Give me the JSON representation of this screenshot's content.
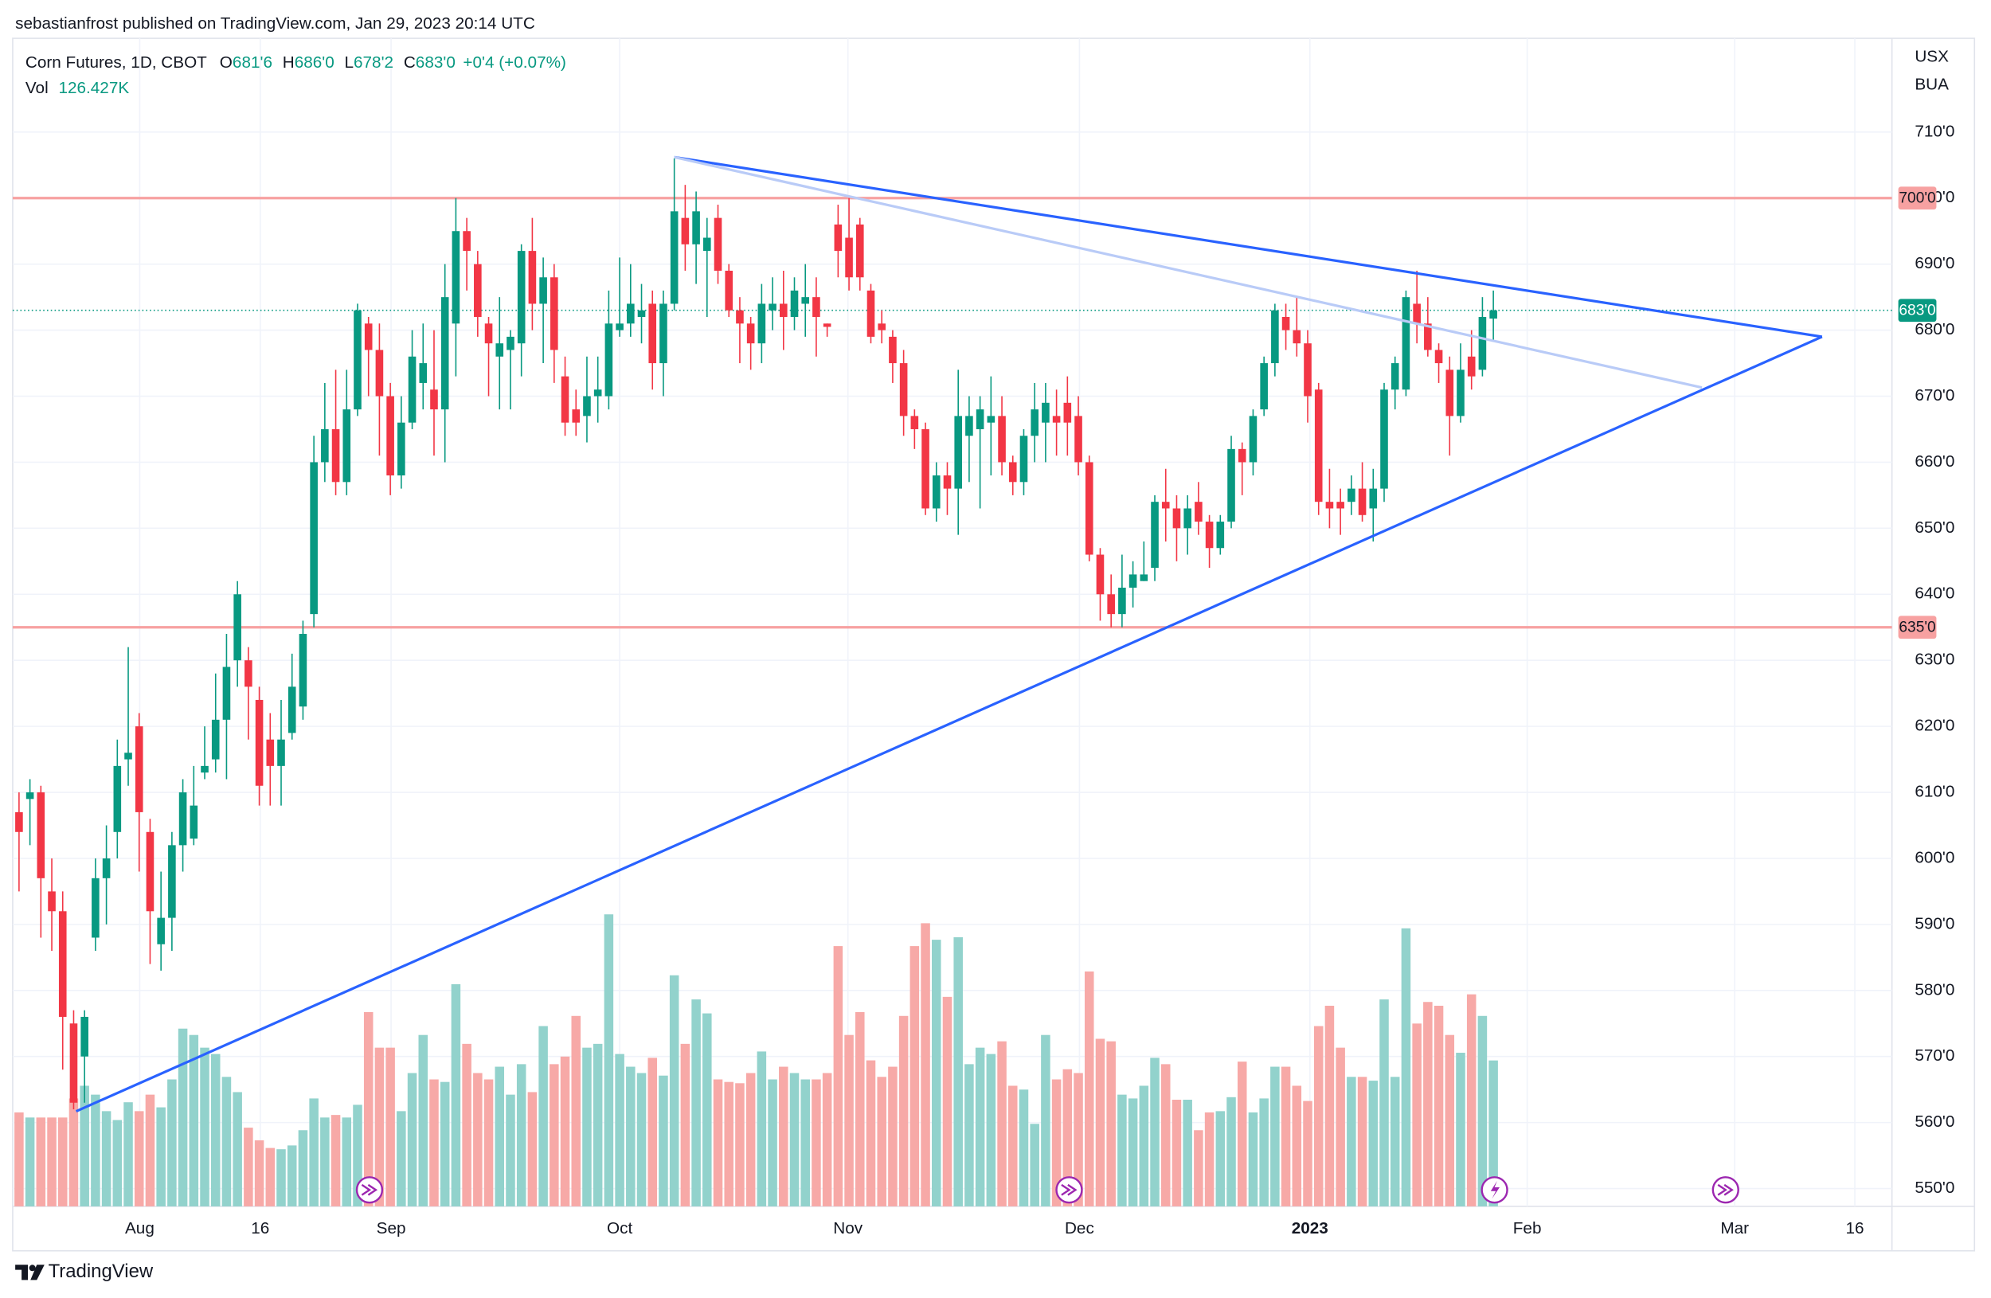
{
  "header": {
    "publisher": "sebastianfrost published on TradingView.com, Jan 29, 2023 20:14 UTC"
  },
  "footer": {
    "brand": "TradingView"
  },
  "chart_data": {
    "type": "candlestick",
    "legend": {
      "symbol": "Corn Futures, 1D, CBOT",
      "items": [
        {
          "key": "O",
          "value": 681.75,
          "label": "681'6"
        },
        {
          "key": "H",
          "value": 686,
          "label": "686'0"
        },
        {
          "key": "L",
          "value": 678.25,
          "label": "678'2"
        },
        {
          "key": "C",
          "value": 683,
          "label": "683'0"
        }
      ],
      "change": "+0'4 (+0.07%)",
      "volume_key": "Vol",
      "volume": {
        "value": 126427,
        "label": "126.427K"
      }
    },
    "units": [
      "USX",
      "BUA"
    ],
    "up_color": "#089981",
    "down_color": "#f23645",
    "volume_up_color": "#92d2cc",
    "volume_down_color": "#f7a9a7",
    "open": [
      607,
      609,
      610,
      595,
      592,
      575,
      570,
      588,
      597,
      604,
      615,
      620,
      604,
      587,
      591,
      602,
      603,
      613,
      615,
      621,
      630,
      630,
      624,
      618,
      614,
      619,
      623,
      637,
      660,
      665,
      657,
      668,
      681,
      677,
      670,
      658,
      666,
      672,
      671,
      668,
      681,
      695,
      690,
      681,
      676,
      677,
      678,
      692,
      684,
      688,
      673,
      668,
      667,
      670,
      670,
      680,
      681,
      682,
      684,
      675,
      684,
      697,
      693,
      692,
      697,
      689,
      683,
      681,
      678,
      683,
      684,
      682,
      684,
      685,
      681,
      696,
      694,
      696,
      686,
      681,
      679,
      675,
      667,
      665,
      653,
      658,
      656,
      664,
      665,
      666,
      667,
      660,
      657,
      664,
      666,
      667,
      669,
      667,
      660,
      646,
      640,
      637,
      641,
      642,
      644,
      654,
      653,
      650,
      654,
      651,
      647,
      651,
      662,
      660,
      668,
      675,
      682,
      680,
      678,
      671,
      654,
      654,
      654,
      656,
      653,
      656,
      671,
      671,
      684,
      681,
      677,
      674,
      667,
      676,
      674,
      681.75
    ],
    "high": [
      610,
      612,
      611,
      600,
      595,
      577,
      577,
      600,
      605,
      618,
      632,
      622,
      606,
      598,
      604,
      612,
      614,
      620,
      628,
      634,
      642,
      632,
      626,
      622,
      624,
      631,
      636,
      664,
      672,
      674,
      674,
      684,
      682,
      681,
      672,
      670,
      680,
      681,
      680,
      690,
      700,
      697,
      692,
      682,
      685,
      680,
      693,
      697,
      691,
      690,
      676,
      671,
      676,
      676,
      686,
      691,
      690,
      687,
      686,
      686,
      706,
      702,
      701,
      697,
      699,
      690,
      685,
      682,
      687,
      688,
      689,
      688,
      690,
      688,
      681,
      699,
      700,
      697,
      687,
      683,
      680,
      677,
      668,
      666,
      660,
      660,
      674,
      670,
      670,
      673,
      670,
      661,
      665,
      672,
      672,
      671,
      673,
      670,
      661,
      647,
      643,
      646,
      645,
      648,
      655,
      659,
      655,
      655,
      657,
      652,
      652,
      664,
      663,
      668,
      676,
      684,
      684,
      685,
      680,
      672,
      659,
      656,
      658,
      660,
      659,
      672,
      676,
      686,
      689,
      685,
      678,
      676,
      678,
      680,
      685,
      686
    ],
    "low": [
      595,
      602,
      588,
      586,
      568,
      562,
      563,
      586,
      590,
      600,
      611,
      598,
      584,
      583,
      586,
      598,
      602,
      612,
      613,
      612,
      626,
      618,
      608,
      608,
      608,
      618,
      621,
      635,
      657,
      655,
      655,
      667,
      670,
      661,
      655,
      656,
      665,
      668,
      661,
      660,
      673,
      686,
      679,
      670,
      668,
      668,
      673,
      680,
      675,
      672,
      664,
      664,
      663,
      666,
      668,
      679,
      679,
      678,
      671,
      670,
      683,
      689,
      687,
      682,
      687,
      682,
      675,
      674,
      675,
      680,
      677,
      680,
      679,
      676,
      679,
      688,
      686,
      686,
      678,
      678,
      672,
      664,
      662,
      652,
      651,
      652,
      649,
      657,
      653,
      658,
      658,
      655,
      655,
      660,
      660,
      661,
      661,
      658,
      645,
      636,
      635,
      635,
      638,
      642,
      642,
      648,
      645,
      646,
      649,
      644,
      646,
      650,
      655,
      658,
      667,
      673,
      677,
      676,
      666,
      652,
      650,
      649,
      652,
      651,
      648,
      654,
      668,
      670,
      678,
      676,
      672,
      661,
      666,
      671,
      673,
      678.25
    ],
    "close": [
      604,
      610,
      597,
      592,
      576,
      563,
      576,
      597,
      600,
      614,
      616,
      607,
      592,
      591,
      602,
      610,
      608,
      614,
      621,
      629,
      640,
      626,
      611,
      614,
      618,
      626,
      634,
      660,
      665,
      657,
      668,
      683,
      677,
      670,
      658,
      666,
      676,
      675,
      668,
      685,
      695,
      692,
      682,
      678,
      678,
      679,
      692,
      684,
      688,
      677,
      666,
      666,
      670,
      671,
      681,
      681,
      684,
      683,
      675,
      684,
      698,
      693,
      698,
      694,
      689,
      683,
      681,
      678,
      684,
      684,
      682,
      686,
      685,
      682,
      680.5,
      692,
      688,
      688,
      679,
      680,
      675,
      667,
      665,
      653,
      658,
      656,
      667,
      667,
      668,
      667,
      660,
      657,
      664,
      668,
      669,
      666,
      666,
      660,
      646,
      640,
      637,
      641,
      643,
      643,
      654,
      653,
      650,
      653,
      651,
      647,
      651,
      662,
      660,
      667,
      675,
      683,
      680,
      678,
      670,
      654,
      653,
      653,
      656,
      652,
      656,
      671,
      675,
      685,
      681,
      677,
      675,
      667,
      674,
      673,
      682,
      683
    ],
    "volume": [
      81400,
      77000,
      77000,
      77000,
      77000,
      93500,
      104500,
      96800,
      82500,
      74800,
      90200,
      82500,
      96800,
      85800,
      110000,
      154000,
      148500,
      137500,
      132000,
      112200,
      99000,
      68200,
      57200,
      50600,
      49500,
      52800,
      66000,
      93500,
      77000,
      79200,
      77000,
      88000,
      168300,
      137500,
      137500,
      82500,
      115500,
      148500,
      110000,
      107800,
      192500,
      140800,
      115500,
      110000,
      121000,
      96800,
      123200,
      99000,
      156200,
      123200,
      129800,
      165000,
      137500,
      140800,
      253000,
      132000,
      121000,
      115500,
      128700,
      113300,
      200200,
      140800,
      179300,
      167200,
      110000,
      107800,
      106700,
      115500,
      134200,
      110000,
      121000,
      115500,
      110000,
      110000,
      115500,
      225500,
      148500,
      168300,
      126500,
      112200,
      121000,
      165000,
      225500,
      245300,
      231000,
      181500,
      233200,
      123200,
      137500,
      132000,
      143000,
      104500,
      101200,
      71500,
      148500,
      110000,
      118800,
      115500,
      203500,
      145200,
      143000,
      96800,
      93500,
      104500,
      128700,
      123200,
      92400,
      92400,
      66000,
      81400,
      82500,
      94600,
      125400,
      81400,
      93500,
      121000,
      121000,
      104500,
      91300,
      156200,
      173800,
      137500,
      112200,
      112200,
      108900,
      179300,
      112200,
      240900,
      158400,
      177100,
      173800,
      148500,
      133100,
      183700,
      165000,
      126427
    ],
    "xlim": [
      -0.58,
      171.5
    ],
    "xticks": [
      {
        "value": 11.05,
        "label": "Aug"
      },
      {
        "value": 22.09,
        "label": "16"
      },
      {
        "value": 34.07,
        "label": "Sep"
      },
      {
        "value": 55.0,
        "label": "Oct"
      },
      {
        "value": 75.9,
        "label": "Nov"
      },
      {
        "value": 97.1,
        "label": "Dec"
      },
      {
        "value": 118.2,
        "label": "2023",
        "bold": true
      },
      {
        "value": 138.1,
        "label": "Feb"
      },
      {
        "value": 157.1,
        "label": "Mar"
      },
      {
        "value": 168.1,
        "label": "16"
      }
    ],
    "ylim": [
      547.3,
      724.2
    ],
    "yticks": [
      {
        "value": 550,
        "label": "550'0"
      },
      {
        "value": 560,
        "label": "560'0"
      },
      {
        "value": 570,
        "label": "570'0"
      },
      {
        "value": 580,
        "label": "580'0"
      },
      {
        "value": 590,
        "label": "590'0"
      },
      {
        "value": 600,
        "label": "600'0"
      },
      {
        "value": 610,
        "label": "610'0"
      },
      {
        "value": 620,
        "label": "620'0"
      },
      {
        "value": 630,
        "label": "630'0"
      },
      {
        "value": 640,
        "label": "640'0"
      },
      {
        "value": 650,
        "label": "650'0"
      },
      {
        "value": 660,
        "label": "660'0"
      },
      {
        "value": 670,
        "label": "670'0"
      },
      {
        "value": 680,
        "label": "680'0"
      },
      {
        "value": 690,
        "label": "690'0"
      },
      {
        "value": 700,
        "label": "700'0"
      },
      {
        "value": 710,
        "label": "710'0"
      }
    ],
    "volume_lim": [
      0,
      1012000
    ],
    "grid": true,
    "horizontal_lines": [
      {
        "value": 700,
        "label": "700'0",
        "color": "#f7a1a1"
      },
      {
        "value": 635,
        "label": "635'0",
        "color": "#f7a1a1"
      }
    ],
    "last_price_color": "#089981",
    "trend_lines": [
      {
        "points": [
          {
            "x": 5.23,
            "y": 561.7
          },
          {
            "x": 165.1,
            "y": 679
          }
        ],
        "color": "#2962ff"
      },
      {
        "points": [
          {
            "x": 60,
            "y": 706.2
          },
          {
            "x": 165.1,
            "y": 679
          }
        ],
        "color": "#2962ff"
      },
      {
        "points": [
          {
            "x": 60,
            "y": 706.2
          },
          {
            "x": 154.1,
            "y": 671.3
          }
        ],
        "color": "#b9cbf7"
      }
    ]
  }
}
